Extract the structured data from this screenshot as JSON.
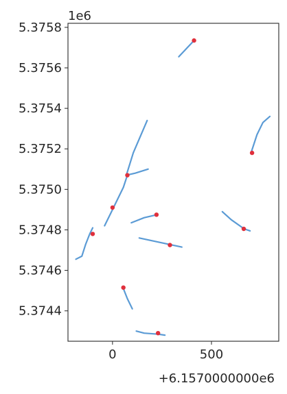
{
  "chart_data": {
    "type": "line",
    "title": "",
    "xlabel": "",
    "ylabel": "",
    "x_offset_label": "+6.1570000000e6",
    "y_multiplier_label": "1e6",
    "xlim": [
      -225,
      840
    ],
    "ylim": [
      5.37425,
      5.37582
    ],
    "xticks": [
      0,
      500
    ],
    "xtick_labels": [
      "0",
      "500"
    ],
    "yticks": [
      5.3744,
      5.3746,
      5.3748,
      5.375,
      5.3752,
      5.3754,
      5.3756,
      5.3758
    ],
    "ytick_labels": [
      "5.3744",
      "5.3746",
      "5.3748",
      "5.3750",
      "5.3752",
      "5.3754",
      "5.3756",
      "5.3758"
    ],
    "grid": false,
    "line_color": "#5b9bd5",
    "point_color": "#e0303c",
    "series": [
      {
        "x": [
          335,
          412
        ],
        "y": [
          5.375655,
          5.375735
        ]
      },
      {
        "x": [
          700,
          730,
          760,
          795
        ],
        "y": [
          5.37518,
          5.37527,
          5.37533,
          5.37536
        ]
      },
      {
        "x": [
          70,
          105,
          175
        ],
        "y": [
          5.37507,
          5.37518,
          5.37534
        ]
      },
      {
        "x": [
          70,
          115,
          180
        ],
        "y": [
          5.37507,
          5.37508,
          5.3751
        ]
      },
      {
        "x": [
          -40,
          0,
          55,
          75
        ],
        "y": [
          5.37482,
          5.3749,
          5.37501,
          5.37507
        ]
      },
      {
        "x": [
          95,
          160,
          225
        ],
        "y": [
          5.374835,
          5.37486,
          5.374875
        ]
      },
      {
        "x": [
          555,
          600,
          665,
          695
        ],
        "y": [
          5.37489,
          5.37485,
          5.374805,
          5.374795
        ]
      },
      {
        "x": [
          -185,
          -155,
          -135,
          -115,
          -100
        ],
        "y": [
          5.374655,
          5.37467,
          5.37473,
          5.37478,
          5.37481
        ]
      },
      {
        "x": [
          135,
          230,
          350
        ],
        "y": [
          5.37476,
          5.37474,
          5.374715
        ]
      },
      {
        "x": [
          55,
          75,
          100
        ],
        "y": [
          5.37451,
          5.37446,
          5.37441
        ]
      },
      {
        "x": [
          120,
          160,
          230,
          265
        ],
        "y": [
          5.3743,
          5.37429,
          5.374285,
          5.37428
        ]
      }
    ],
    "points": {
      "x": [
        412,
        705,
        75,
        0,
        222,
        663,
        -100,
        290,
        55,
        230
      ],
      "y": [
        5.375735,
        5.37518,
        5.37507,
        5.37491,
        5.374875,
        5.374805,
        5.37478,
        5.374725,
        5.374515,
        5.37429
      ]
    }
  }
}
